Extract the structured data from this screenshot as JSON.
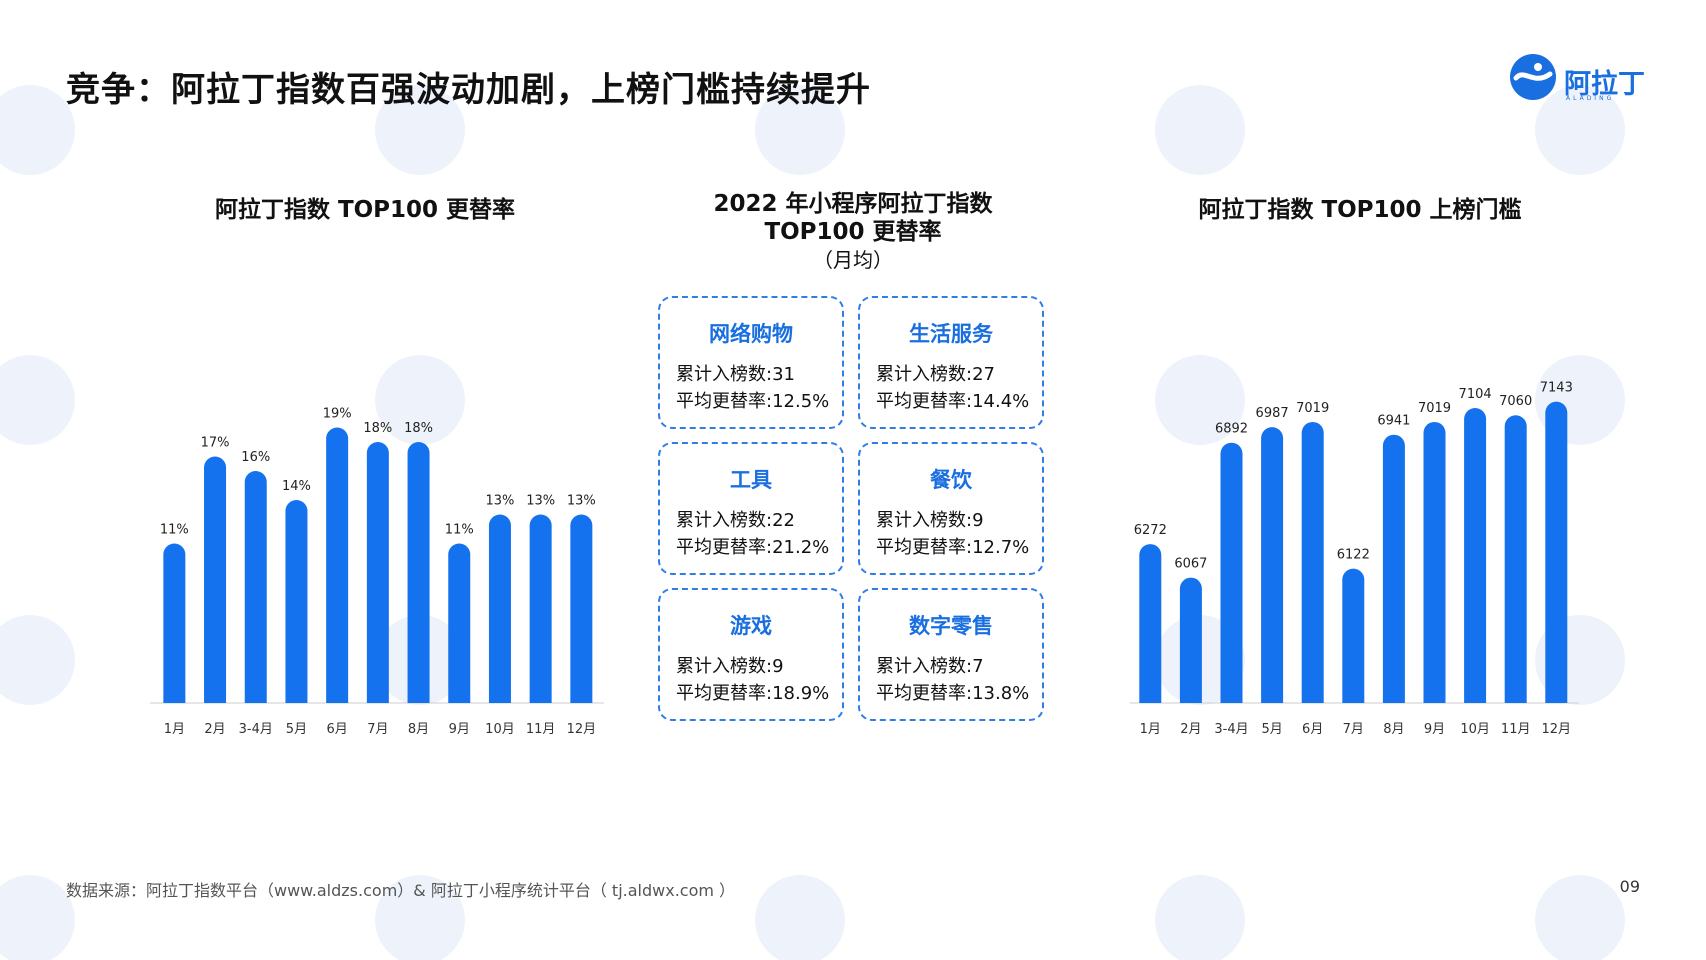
{
  "title": "竞争：阿拉丁指数百强波动加剧，上榜门槛持续提升",
  "logo": {
    "name": "阿拉丁",
    "sub": "ALADING"
  },
  "colors": {
    "bar": "#1572ee",
    "card_border": "#2f7de6",
    "card_title": "#1a6fe0"
  },
  "chart_data": [
    {
      "type": "bar",
      "title": "阿拉丁指数 TOP100 更替率",
      "categories": [
        "1月",
        "2月",
        "3-4月",
        "5月",
        "6月",
        "7月",
        "8月",
        "9月",
        "10月",
        "11月",
        "12月"
      ],
      "values": [
        11,
        17,
        16,
        14,
        19,
        18,
        18,
        11,
        13,
        13,
        13
      ],
      "value_labels": [
        "11%",
        "17%",
        "16%",
        "14%",
        "19%",
        "18%",
        "18%",
        "11%",
        "13%",
        "13%",
        "13%"
      ],
      "unit": "%",
      "ylim": [
        0,
        22
      ],
      "grid": false,
      "legend": "none"
    },
    {
      "type": "bar",
      "title": "阿拉丁指数 TOP100 上榜门槛",
      "categories": [
        "1月",
        "2月",
        "3-4月",
        "5月",
        "6月",
        "7月",
        "8月",
        "9月",
        "10月",
        "11月",
        "12月"
      ],
      "values": [
        6272,
        6067,
        6892,
        6987,
        7019,
        6122,
        6941,
        7019,
        7104,
        7060,
        7143
      ],
      "value_labels": [
        "6272",
        "6067",
        "6892",
        "6987",
        "7019",
        "6122",
        "6941",
        "7019",
        "7104",
        "7060",
        "7143"
      ],
      "ylim": [
        5300,
        7300
      ],
      "grid": false,
      "legend": "none"
    }
  ],
  "center": {
    "title_line1": "2022 年小程序阿拉丁指数",
    "title_line2": "TOP100 更替率",
    "title_line3": "（月均）",
    "cards": [
      {
        "title": "网络购物",
        "line1": "累计入榜数:31",
        "line2": "平均更替率:12.5%"
      },
      {
        "title": "生活服务",
        "line1": "累计入榜数:27",
        "line2": "平均更替率:14.4%"
      },
      {
        "title": "工具",
        "line1": "累计入榜数:22",
        "line2": "平均更替率:21.2%"
      },
      {
        "title": "餐饮",
        "line1": "累计入榜数:9",
        "line2": "平均更替率:12.7%"
      },
      {
        "title": "游戏",
        "line1": "累计入榜数:9",
        "line2": "平均更替率:18.9%"
      },
      {
        "title": "数字零售",
        "line1": "累计入榜数:7",
        "line2": "平均更替率:13.8%"
      }
    ]
  },
  "footer": {
    "source": "数据来源：阿拉丁指数平台（www.aldzs.com）& 阿拉丁小程序统计平台（ tj.aldwx.com ）",
    "page": "09"
  }
}
